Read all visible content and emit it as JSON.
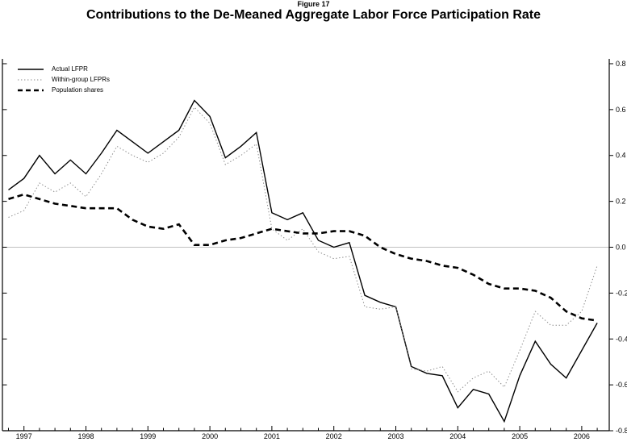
{
  "title": {
    "figure_label": "Figure 17",
    "text": "Contributions to the De-Meaned Aggregate Labor Force Participation Rate"
  },
  "chart_data": {
    "type": "line",
    "title": "Contributions to the De-Meaned Aggregate Labor Force Participation Rate",
    "x_unit": "quarterly",
    "x_start": "1996Q4",
    "x_end": "2006Q2",
    "year_tick_labels": [
      "1997",
      "1998",
      "1999",
      "2000",
      "2001",
      "2002",
      "2003",
      "2004",
      "2005",
      "2006"
    ],
    "y_axis": {
      "side": "right",
      "min": -0.8,
      "max": 0.8,
      "tick_step": 0.2,
      "tick_labels": [
        "0.8",
        "0.6",
        "0.4",
        "0.2",
        "0.0",
        "-0.2",
        "-0.4",
        "-0.6",
        "-0.8"
      ]
    },
    "zero_line": true,
    "grid": "zero-line-only",
    "legend_position": "top-left-inside",
    "series": [
      {
        "name": "Actual LFPR",
        "style": "solid",
        "values": [
          0.25,
          0.3,
          0.4,
          0.32,
          0.38,
          0.32,
          0.41,
          0.51,
          0.46,
          0.41,
          0.46,
          0.51,
          0.64,
          0.57,
          0.39,
          0.44,
          0.5,
          0.15,
          0.12,
          0.15,
          0.03,
          0.0,
          0.02,
          -0.21,
          -0.24,
          -0.26,
          -0.52,
          -0.55,
          -0.56,
          -0.7,
          -0.62,
          -0.64,
          -0.76,
          -0.56,
          -0.41,
          -0.51,
          -0.57,
          -0.45,
          -0.33
        ]
      },
      {
        "name": "Within-group LFPRs",
        "style": "dotted",
        "values": [
          0.13,
          0.16,
          0.28,
          0.24,
          0.28,
          0.22,
          0.32,
          0.44,
          0.4,
          0.37,
          0.41,
          0.48,
          0.61,
          0.54,
          0.36,
          0.4,
          0.45,
          0.08,
          0.03,
          0.08,
          -0.02,
          -0.05,
          -0.04,
          -0.26,
          -0.27,
          -0.26,
          -0.53,
          -0.54,
          -0.52,
          -0.63,
          -0.57,
          -0.54,
          -0.61,
          -0.45,
          -0.28,
          -0.34,
          -0.34,
          -0.28,
          -0.08
        ]
      },
      {
        "name": "Population shares",
        "style": "dashed",
        "values": [
          0.21,
          0.23,
          0.21,
          0.19,
          0.18,
          0.17,
          0.17,
          0.17,
          0.12,
          0.09,
          0.08,
          0.1,
          0.01,
          0.01,
          0.03,
          0.04,
          0.06,
          0.08,
          0.07,
          0.06,
          0.06,
          0.07,
          0.07,
          0.05,
          0.0,
          -0.03,
          -0.05,
          -0.06,
          -0.08,
          -0.09,
          -0.12,
          -0.16,
          -0.18,
          -0.18,
          -0.19,
          -0.22,
          -0.28,
          -0.31,
          -0.32
        ]
      }
    ],
    "colors": {
      "solid": "#000000",
      "dotted": "#8a8a8a",
      "dashed": "#000000",
      "zero_line": "#aaaaaa",
      "axis": "#000000"
    }
  }
}
